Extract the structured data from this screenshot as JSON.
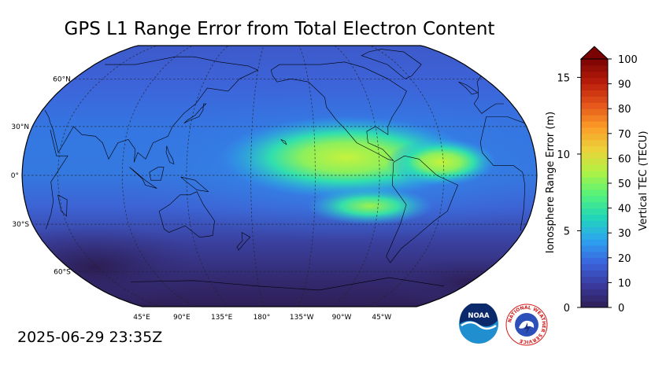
{
  "title": "GPS L1 Range Error from Total Electron Content",
  "timestamp": "2025-06-29 23:35Z",
  "map": {
    "projection": "robinson",
    "central_longitude_deg": -160,
    "lat_labels": [
      {
        "text": "60°N",
        "lat": 60
      },
      {
        "text": "30°N",
        "lat": 30
      },
      {
        "text": "0°",
        "lat": 0
      },
      {
        "text": "30°S",
        "lat": -30
      },
      {
        "text": "60°S",
        "lat": -60
      }
    ],
    "lon_labels": [
      {
        "text": "45°E",
        "lon": 45
      },
      {
        "text": "90°E",
        "lon": 90
      },
      {
        "text": "135°E",
        "lon": 135
      },
      {
        "text": "180°",
        "lon": 180
      },
      {
        "text": "135°W",
        "lon": -135
      },
      {
        "text": "90°W",
        "lon": -90
      },
      {
        "text": "45°W",
        "lon": -45
      }
    ],
    "gridlines": true
  },
  "colorbar": {
    "left_axis_label": "Ionosphere Range Error (m)",
    "right_axis_label": "Vertical TEC (TECU)",
    "left_ticks": [
      {
        "text": "0",
        "value": 0
      },
      {
        "text": "5",
        "value": 5
      },
      {
        "text": "10",
        "value": 10
      },
      {
        "text": "15",
        "value": 15
      }
    ],
    "right_ticks": [
      {
        "text": "0",
        "value": 0
      },
      {
        "text": "10",
        "value": 10
      },
      {
        "text": "20",
        "value": 20
      },
      {
        "text": "30",
        "value": 30
      },
      {
        "text": "40",
        "value": 40
      },
      {
        "text": "50",
        "value": 50
      },
      {
        "text": "60",
        "value": 60
      },
      {
        "text": "70",
        "value": 70
      },
      {
        "text": "80",
        "value": 80
      },
      {
        "text": "90",
        "value": 90
      },
      {
        "text": "100",
        "value": 100
      }
    ],
    "tecu_range": [
      0,
      100
    ],
    "range_error_range_m": [
      0,
      16.2
    ],
    "extend": "max",
    "colors": [
      "#2e1e55",
      "#3a3a9e",
      "#3b64de",
      "#2da4f0",
      "#22d6b8",
      "#54f27a",
      "#aef244",
      "#ecd23a",
      "#fb9b27",
      "#e5541a",
      "#b71c0a",
      "#7a0403"
    ]
  },
  "logos": {
    "noaa_text": "NOAA",
    "nws_text": "NATIONAL WEATHER SERVICE"
  }
}
